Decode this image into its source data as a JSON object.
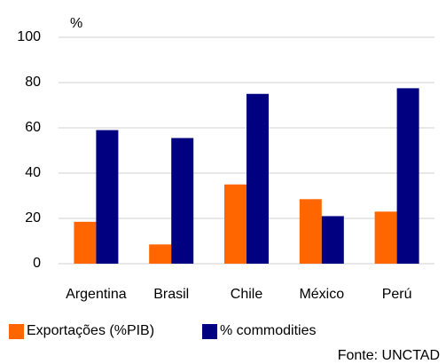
{
  "chart_data": {
    "type": "bar",
    "y_label": "%",
    "categories": [
      "Argentina",
      "Brasil",
      "Chile",
      "México",
      "Perú"
    ],
    "series": [
      {
        "name": "Exportações (%PIB)",
        "color": "#ff6600",
        "values": [
          18.5,
          8.5,
          35,
          28.5,
          23
        ]
      },
      {
        "name": "% commodities",
        "color": "#000080",
        "values": [
          59,
          55.5,
          75,
          21,
          77.5
        ]
      }
    ],
    "ylim": [
      0,
      100
    ],
    "yticks": [
      0,
      20,
      40,
      60,
      80,
      100
    ],
    "grid": true,
    "legend": "bottom",
    "source": "Fonte: UNCTAD"
  }
}
